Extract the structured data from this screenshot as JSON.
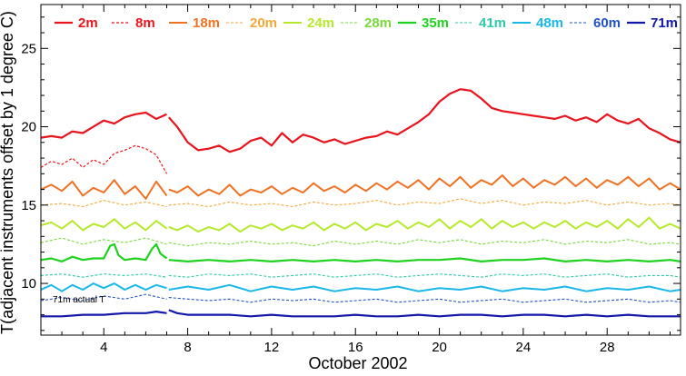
{
  "chart_data": {
    "type": "line",
    "xlabel": "October 2002",
    "ylabel": "T(adjacent instruments offset by 1 degree C)",
    "xlim": [
      1,
      31.5
    ],
    "ylim": [
      6.7,
      27.8
    ],
    "xticks": [
      4,
      8,
      12,
      16,
      20,
      24,
      28
    ],
    "yticks": [
      10,
      15,
      20,
      25
    ],
    "grid": false,
    "legend_position": "top",
    "annotation": "71m actual T",
    "series": [
      {
        "name": "2m",
        "color": "#e8141e",
        "style": "solid",
        "width": 2.2,
        "x": [
          1.0,
          1.5,
          2.0,
          2.5,
          3.0,
          3.5,
          4.0,
          4.5,
          5.0,
          5.5,
          6.0,
          6.5,
          7.0,
          7.1,
          7.5,
          8.0,
          8.5,
          9.0,
          9.5,
          10.0,
          10.5,
          11.0,
          11.5,
          12.0,
          12.5,
          13.0,
          13.5,
          14.0,
          14.5,
          15.0,
          15.5,
          16.0,
          16.5,
          17.0,
          17.5,
          18.0,
          18.5,
          19.0,
          19.5,
          20.0,
          20.5,
          21.0,
          21.5,
          22.0,
          22.5,
          23.0,
          23.5,
          24.0,
          24.5,
          25.0,
          25.5,
          26.0,
          26.5,
          27.0,
          27.5,
          28.0,
          28.5,
          29.0,
          29.5,
          30.0,
          30.5,
          31.0,
          31.5
        ],
        "y": [
          19.3,
          19.4,
          19.3,
          19.7,
          19.6,
          20.0,
          20.4,
          20.2,
          20.6,
          20.8,
          20.9,
          20.5,
          20.8,
          20.6,
          20.0,
          19.0,
          18.5,
          18.6,
          18.8,
          18.4,
          18.6,
          19.1,
          19.3,
          18.8,
          19.6,
          19.0,
          19.5,
          19.3,
          19.0,
          19.2,
          18.9,
          19.1,
          19.3,
          19.4,
          19.7,
          19.5,
          19.9,
          20.3,
          20.8,
          21.6,
          22.1,
          22.4,
          22.3,
          21.8,
          21.2,
          21.0,
          20.9,
          20.8,
          20.7,
          20.6,
          20.5,
          20.7,
          20.4,
          20.6,
          20.3,
          20.8,
          20.4,
          20.2,
          20.5,
          19.9,
          19.6,
          19.2,
          19.0
        ]
      },
      {
        "name": "8m",
        "color": "#e8141e",
        "style": "dashed",
        "width": 1.2,
        "x": [
          1.0,
          1.5,
          2.0,
          2.5,
          3.0,
          3.5,
          4.0,
          4.5,
          5.0,
          5.5,
          6.0,
          6.5,
          7.0
        ],
        "y": [
          17.4,
          17.8,
          17.6,
          18.0,
          17.4,
          17.9,
          17.6,
          18.3,
          18.5,
          18.8,
          18.6,
          18.2,
          17.0
        ]
      },
      {
        "name": "18m",
        "color": "#ef7224",
        "style": "solid",
        "width": 2.0,
        "x": [
          1.0,
          1.5,
          2.0,
          2.5,
          3.0,
          3.5,
          4.0,
          4.5,
          5.0,
          5.5,
          6.0,
          6.5,
          7.0,
          7.1,
          7.5,
          8.0,
          8.5,
          9.0,
          9.5,
          10.0,
          10.5,
          11.0,
          11.5,
          12.0,
          12.5,
          13.0,
          13.5,
          14.0,
          14.5,
          15.0,
          15.5,
          16.0,
          16.5,
          17.0,
          17.5,
          18.0,
          18.5,
          19.0,
          19.5,
          20.0,
          20.5,
          21.0,
          21.5,
          22.0,
          22.5,
          23.0,
          23.5,
          24.0,
          24.5,
          25.0,
          25.5,
          26.0,
          26.5,
          27.0,
          27.5,
          28.0,
          28.5,
          29.0,
          29.5,
          30.0,
          30.5,
          31.0,
          31.5
        ],
        "y": [
          16.0,
          16.3,
          15.9,
          16.5,
          15.6,
          16.1,
          15.8,
          16.6,
          15.7,
          16.2,
          15.4,
          16.5,
          15.6,
          16.0,
          15.8,
          16.2,
          15.6,
          16.0,
          15.7,
          16.3,
          15.6,
          16.0,
          15.8,
          16.2,
          15.7,
          16.1,
          15.8,
          16.4,
          15.9,
          16.2,
          15.8,
          16.3,
          15.9,
          16.4,
          16.0,
          16.5,
          16.1,
          16.6,
          16.0,
          16.7,
          16.2,
          16.8,
          16.1,
          16.6,
          16.3,
          16.9,
          16.2,
          16.7,
          16.1,
          16.6,
          16.3,
          16.8,
          16.2,
          16.7,
          16.1,
          16.6,
          16.3,
          16.8,
          16.2,
          16.7,
          16.0,
          16.4,
          16.0
        ]
      },
      {
        "name": "20m",
        "color": "#f2a93a",
        "style": "dashed",
        "width": 1.1,
        "x": [
          1.0,
          2.0,
          3.0,
          4.0,
          5.0,
          6.0,
          7.0,
          7.1,
          8.0,
          9.0,
          10.0,
          11.0,
          12.0,
          13.0,
          14.0,
          15.0,
          16.0,
          17.0,
          18.0,
          19.0,
          20.0,
          21.0,
          22.0,
          23.0,
          24.0,
          25.0,
          26.0,
          27.0,
          28.0,
          29.0,
          30.0,
          31.0,
          31.5
        ],
        "y": [
          15.0,
          15.1,
          14.9,
          15.3,
          15.0,
          15.2,
          14.9,
          15.0,
          15.1,
          14.9,
          15.2,
          15.0,
          15.1,
          14.9,
          15.2,
          15.0,
          15.1,
          15.3,
          15.0,
          15.2,
          15.1,
          15.4,
          15.1,
          15.3,
          15.0,
          15.2,
          15.1,
          15.3,
          15.0,
          15.2,
          15.0,
          15.1,
          15.0
        ]
      },
      {
        "name": "24m",
        "color": "#b6e82c",
        "style": "solid",
        "width": 2.0,
        "x": [
          1.0,
          1.5,
          2.0,
          2.5,
          3.0,
          3.5,
          4.0,
          4.5,
          5.0,
          5.5,
          6.0,
          6.5,
          7.0,
          7.1,
          7.5,
          8.0,
          8.5,
          9.0,
          9.5,
          10.0,
          10.5,
          11.0,
          11.5,
          12.0,
          12.5,
          13.0,
          13.5,
          14.0,
          14.5,
          15.0,
          15.5,
          16.0,
          16.5,
          17.0,
          17.5,
          18.0,
          18.5,
          19.0,
          19.5,
          20.0,
          20.5,
          21.0,
          21.5,
          22.0,
          22.5,
          23.0,
          23.5,
          24.0,
          24.5,
          25.0,
          25.5,
          26.0,
          26.5,
          27.0,
          27.5,
          28.0,
          28.5,
          29.0,
          29.5,
          30.0,
          30.5,
          31.0,
          31.5
        ],
        "y": [
          13.7,
          13.9,
          13.5,
          14.0,
          13.4,
          13.8,
          13.6,
          14.1,
          13.5,
          13.9,
          13.4,
          14.0,
          13.5,
          13.6,
          13.4,
          13.7,
          13.3,
          13.6,
          13.4,
          13.8,
          13.3,
          13.7,
          13.5,
          13.8,
          13.4,
          13.7,
          13.5,
          13.9,
          13.4,
          13.8,
          13.5,
          13.9,
          13.4,
          13.8,
          13.6,
          14.0,
          13.5,
          13.9,
          13.6,
          14.1,
          13.5,
          14.0,
          13.6,
          14.1,
          13.5,
          14.0,
          13.6,
          13.9,
          13.5,
          13.9,
          13.6,
          14.0,
          13.5,
          13.9,
          13.6,
          14.0,
          13.5,
          14.1,
          13.6,
          14.2,
          13.5,
          13.8,
          13.5
        ]
      },
      {
        "name": "28m",
        "color": "#7ad83c",
        "style": "dashed",
        "width": 1.1,
        "x": [
          1.0,
          2.0,
          3.0,
          4.0,
          5.0,
          6.0,
          7.0,
          7.1,
          8.0,
          9.0,
          10.0,
          11.0,
          12.0,
          13.0,
          14.0,
          15.0,
          16.0,
          17.0,
          18.0,
          19.0,
          20.0,
          21.0,
          22.0,
          23.0,
          24.0,
          25.0,
          26.0,
          27.0,
          28.0,
          29.0,
          30.0,
          31.0,
          31.5
        ],
        "y": [
          12.6,
          12.9,
          12.5,
          12.8,
          12.6,
          12.9,
          12.5,
          12.6,
          12.4,
          12.6,
          12.5,
          12.7,
          12.5,
          12.6,
          12.4,
          12.7,
          12.5,
          12.7,
          12.5,
          12.8,
          12.6,
          12.8,
          12.5,
          12.7,
          12.6,
          12.8,
          12.5,
          12.7,
          12.6,
          12.8,
          12.5,
          12.6,
          12.5
        ]
      },
      {
        "name": "35m",
        "color": "#1fd21f",
        "style": "solid",
        "width": 2.2,
        "x": [
          1.0,
          1.5,
          2.0,
          2.5,
          3.0,
          3.5,
          4.0,
          4.3,
          4.5,
          4.7,
          5.0,
          5.5,
          6.0,
          6.3,
          6.5,
          6.7,
          7.0,
          7.1,
          8.0,
          9.0,
          10.0,
          11.0,
          12.0,
          13.0,
          14.0,
          15.0,
          16.0,
          17.0,
          18.0,
          19.0,
          20.0,
          21.0,
          22.0,
          23.0,
          24.0,
          25.0,
          26.0,
          27.0,
          28.0,
          29.0,
          30.0,
          31.0,
          31.5
        ],
        "y": [
          11.5,
          11.6,
          11.4,
          11.7,
          11.5,
          11.6,
          11.6,
          12.4,
          12.5,
          11.8,
          11.5,
          11.6,
          11.5,
          12.2,
          12.5,
          11.9,
          11.6,
          11.5,
          11.4,
          11.5,
          11.4,
          11.5,
          11.4,
          11.5,
          11.4,
          11.5,
          11.4,
          11.5,
          11.4,
          11.5,
          11.5,
          11.6,
          11.4,
          11.5,
          11.5,
          11.6,
          11.4,
          11.5,
          11.4,
          11.5,
          11.4,
          11.5,
          11.4
        ]
      },
      {
        "name": "41m",
        "color": "#2ec9a8",
        "style": "dashed",
        "width": 1.1,
        "x": [
          1.0,
          2.0,
          3.0,
          4.0,
          5.0,
          6.0,
          7.0,
          7.1,
          8.0,
          9.0,
          10.0,
          11.0,
          12.0,
          13.0,
          14.0,
          15.0,
          16.0,
          17.0,
          18.0,
          19.0,
          20.0,
          21.0,
          22.0,
          23.0,
          24.0,
          25.0,
          26.0,
          27.0,
          28.0,
          29.0,
          30.0,
          31.0,
          31.5
        ],
        "y": [
          10.5,
          10.6,
          10.4,
          10.6,
          10.5,
          10.6,
          10.4,
          10.5,
          10.4,
          10.6,
          10.5,
          10.6,
          10.4,
          10.5,
          10.6,
          10.4,
          10.5,
          10.6,
          10.4,
          10.5,
          10.6,
          10.5,
          10.4,
          10.6,
          10.5,
          10.6,
          10.4,
          10.5,
          10.6,
          10.4,
          10.5,
          10.5,
          10.4
        ]
      },
      {
        "name": "48m",
        "color": "#1ab8e8",
        "style": "solid",
        "width": 2.0,
        "x": [
          1.0,
          1.5,
          2.0,
          2.5,
          3.0,
          3.5,
          4.0,
          4.5,
          5.0,
          5.5,
          6.0,
          6.5,
          7.0,
          7.1,
          8.0,
          9.0,
          10.0,
          11.0,
          12.0,
          13.0,
          14.0,
          15.0,
          16.0,
          17.0,
          18.0,
          19.0,
          20.0,
          21.0,
          22.0,
          23.0,
          24.0,
          25.0,
          26.0,
          27.0,
          28.0,
          29.0,
          30.0,
          31.0,
          31.5
        ],
        "y": [
          9.6,
          9.9,
          9.5,
          9.9,
          9.6,
          10.0,
          9.7,
          10.0,
          9.6,
          9.9,
          9.6,
          9.9,
          9.7,
          9.6,
          9.8,
          9.6,
          9.9,
          9.5,
          9.8,
          9.6,
          9.8,
          9.5,
          9.7,
          9.6,
          9.8,
          9.5,
          9.7,
          9.6,
          9.8,
          9.5,
          9.7,
          9.6,
          9.8,
          9.5,
          9.7,
          9.6,
          9.8,
          9.5,
          9.6
        ]
      },
      {
        "name": "60m",
        "color": "#2252c4",
        "style": "dashed",
        "width": 1.1,
        "x": [
          1.0,
          2.0,
          3.0,
          4.0,
          5.0,
          6.0,
          7.0,
          7.1,
          8.0,
          9.0,
          10.0,
          11.0,
          12.0,
          13.0,
          14.0,
          15.0,
          16.0,
          17.0,
          18.0,
          19.0,
          20.0,
          21.0,
          22.0,
          23.0,
          24.0,
          25.0,
          26.0,
          27.0,
          28.0,
          29.0,
          30.0,
          31.0,
          31.5
        ],
        "y": [
          8.9,
          9.1,
          8.9,
          9.2,
          9.0,
          9.3,
          9.0,
          9.1,
          9.0,
          8.9,
          9.0,
          8.8,
          9.0,
          8.9,
          9.0,
          8.8,
          8.9,
          9.0,
          8.8,
          8.9,
          9.0,
          8.8,
          8.9,
          9.0,
          8.8,
          8.9,
          9.0,
          8.8,
          8.9,
          9.0,
          8.8,
          8.9,
          8.8
        ]
      },
      {
        "name": "71m",
        "color": "#1218a8",
        "style": "solid",
        "width": 2.2,
        "x": [
          1.0,
          2.0,
          3.0,
          4.0,
          5.0,
          6.0,
          6.5,
          7.0,
          7.1,
          7.5,
          8.0,
          9.0,
          10.0,
          11.0,
          12.0,
          13.0,
          14.0,
          15.0,
          16.0,
          17.0,
          18.0,
          19.0,
          20.0,
          21.0,
          22.0,
          23.0,
          24.0,
          25.0,
          26.0,
          27.0,
          28.0,
          29.0,
          30.0,
          31.0,
          31.5
        ],
        "y": [
          7.9,
          7.9,
          8.0,
          8.0,
          8.1,
          8.1,
          8.2,
          8.1,
          8.3,
          8.1,
          8.0,
          8.0,
          8.0,
          7.9,
          8.0,
          7.9,
          7.9,
          7.9,
          8.0,
          7.9,
          7.9,
          8.0,
          7.9,
          8.0,
          8.0,
          7.9,
          8.0,
          8.0,
          7.9,
          8.0,
          7.9,
          8.0,
          7.9,
          7.9,
          7.9
        ]
      }
    ]
  }
}
